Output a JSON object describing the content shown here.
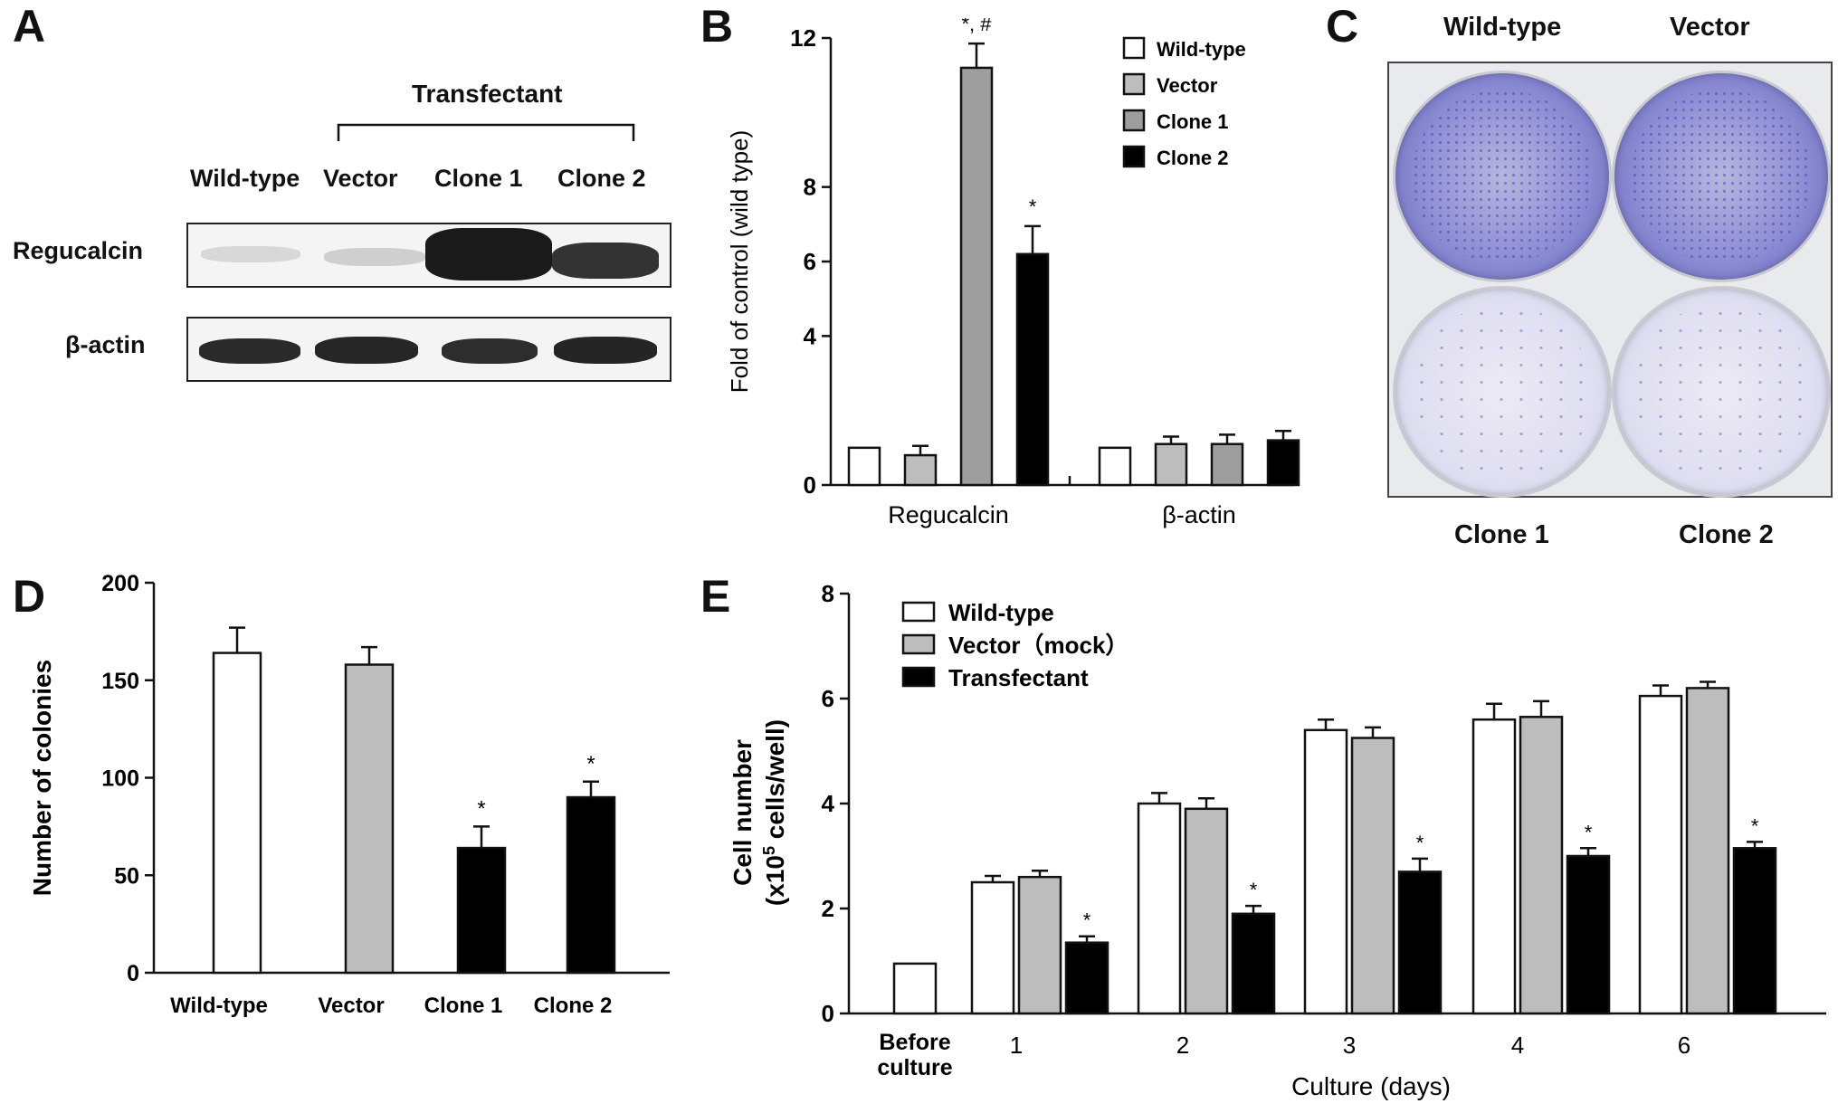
{
  "panels": {
    "A": {
      "letter": "A",
      "group_label": "Transfectant",
      "lane_labels": [
        "Wild-type",
        "Vector",
        "Clone 1",
        "Clone 2"
      ],
      "row_labels": [
        "Regucalcin",
        "β-actin"
      ]
    },
    "B": {
      "letter": "B"
    },
    "C": {
      "letter": "C",
      "top_labels": [
        "Wild-type",
        "Vector"
      ],
      "bottom_labels": [
        "Clone 1",
        "Clone 2"
      ]
    },
    "D": {
      "letter": "D"
    },
    "E": {
      "letter": "E"
    }
  },
  "colors": {
    "wild_type": "#ffffff",
    "vector": "#bdbdbd",
    "clone1": "#9e9e9e",
    "clone2": "#000000",
    "transfectant": "#000000",
    "crystal_violet": "#5b5bc8"
  },
  "chart_data": [
    {
      "panel": "B",
      "type": "bar",
      "categories": [
        "Regucalcin",
        "β-actin"
      ],
      "series": [
        {
          "name": "Wild-type",
          "values": [
            1.0,
            1.0
          ],
          "errors": [
            0,
            0
          ]
        },
        {
          "name": "Vector",
          "values": [
            0.8,
            1.1
          ],
          "errors": [
            0.25,
            0.2
          ]
        },
        {
          "name": "Clone 1",
          "values": [
            11.2,
            1.1
          ],
          "errors": [
            0.65,
            0.25
          ]
        },
        {
          "name": "Clone 2",
          "values": [
            6.2,
            1.2
          ],
          "errors": [
            0.75,
            0.25
          ]
        }
      ],
      "annotations": [
        {
          "category": "Regucalcin",
          "series": "Clone 1",
          "text": "*, #"
        },
        {
          "category": "Regucalcin",
          "series": "Clone 2",
          "text": "*"
        }
      ],
      "ylabel": "Fold of control (wild type)",
      "xlabel": "",
      "yticks": [
        0,
        4,
        6,
        8,
        12
      ],
      "ylim": [
        0,
        12
      ],
      "legend": "top-right"
    },
    {
      "panel": "D",
      "type": "bar",
      "categories": [
        "Wild-type",
        "Vector",
        "Clone 1",
        "Clone 2"
      ],
      "values": [
        164,
        158,
        64,
        90
      ],
      "errors": [
        13,
        9,
        11,
        8
      ],
      "bar_colors": [
        "#ffffff",
        "#bdbdbd",
        "#000000",
        "#000000"
      ],
      "annotations": [
        {
          "category": "Clone 1",
          "text": "*"
        },
        {
          "category": "Clone 2",
          "text": "*"
        }
      ],
      "ylabel": "Number of colonies",
      "xlabel": "",
      "yticks": [
        0,
        50,
        100,
        150,
        200
      ],
      "ylim": [
        0,
        200
      ]
    },
    {
      "panel": "E",
      "type": "bar",
      "categories": [
        "1",
        "2",
        "3",
        "4",
        "6"
      ],
      "baseline": {
        "label_lines": [
          "Before",
          "culture"
        ],
        "value": 0.95
      },
      "series": [
        {
          "name": "Wild-type",
          "values": [
            2.5,
            4.0,
            5.4,
            5.6,
            6.05
          ],
          "errors": [
            0.12,
            0.2,
            0.2,
            0.3,
            0.2
          ]
        },
        {
          "name": "Vector（mock）",
          "values": [
            2.6,
            3.9,
            5.25,
            5.65,
            6.2
          ],
          "errors": [
            0.12,
            0.2,
            0.2,
            0.3,
            0.12
          ]
        },
        {
          "name": "Transfectant",
          "values": [
            1.35,
            1.9,
            2.7,
            3.0,
            3.15
          ],
          "errors": [
            0.12,
            0.15,
            0.25,
            0.15,
            0.12
          ]
        }
      ],
      "annotations": [
        {
          "category": "1",
          "series": "Transfectant",
          "text": "*"
        },
        {
          "category": "2",
          "series": "Transfectant",
          "text": "*"
        },
        {
          "category": "3",
          "series": "Transfectant",
          "text": "*"
        },
        {
          "category": "4",
          "series": "Transfectant",
          "text": "*"
        },
        {
          "category": "6",
          "series": "Transfectant",
          "text": "*"
        }
      ],
      "ylabel_lines": [
        "Cell number",
        "(x10",
        "5",
        " cells/well)"
      ],
      "xlabel": "Culture (days)",
      "yticks": [
        0,
        2,
        4,
        6,
        8
      ],
      "ylim": [
        0,
        8
      ],
      "legend": "top-left"
    }
  ]
}
